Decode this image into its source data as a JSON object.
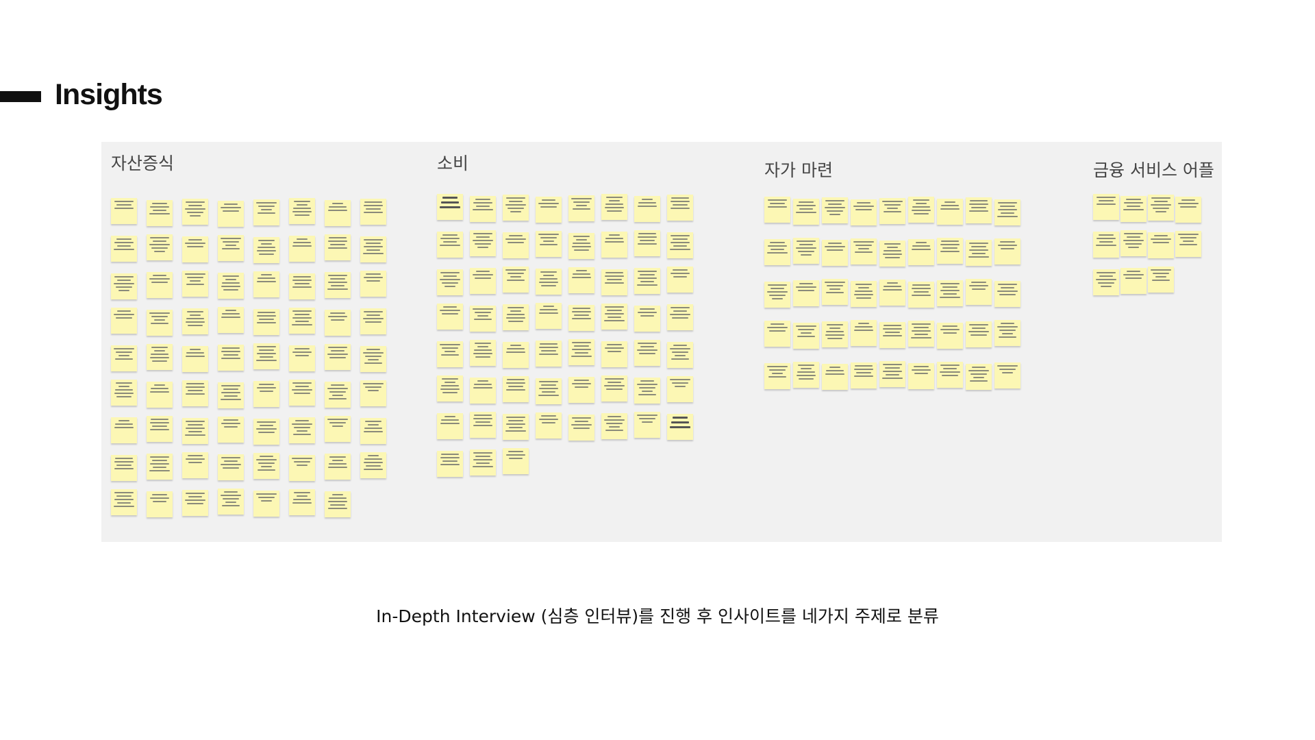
{
  "page": {
    "title": "Insights",
    "caption": "In-Depth Interview (심층 인터뷰)를 진행 후 인사이트를 네가지 주제로 분류"
  },
  "colors": {
    "board_background": "#f1f1f1",
    "sticky_note": "#fcf7b4",
    "accent_bar": "#111111"
  },
  "groups": [
    {
      "label": "자산증식",
      "note_rows": [
        8,
        8,
        8,
        8,
        8,
        8,
        8,
        8,
        7
      ]
    },
    {
      "label": "소비",
      "note_rows": [
        8,
        8,
        8,
        8,
        8,
        8,
        8,
        3
      ],
      "large_text_notes": [
        {
          "row": 0,
          "col": 0,
          "text": "소비하면 때오르는 것은 행복"
        },
        {
          "row": 6,
          "col": 7,
          "text": "소비를 하는 가장 큰 이유는 행복"
        }
      ]
    },
    {
      "label": "자가 마련",
      "note_rows": [
        9,
        9,
        9,
        9,
        9
      ]
    },
    {
      "label": "금융 서비스 어플",
      "note_rows": [
        4,
        4,
        3
      ]
    }
  ]
}
